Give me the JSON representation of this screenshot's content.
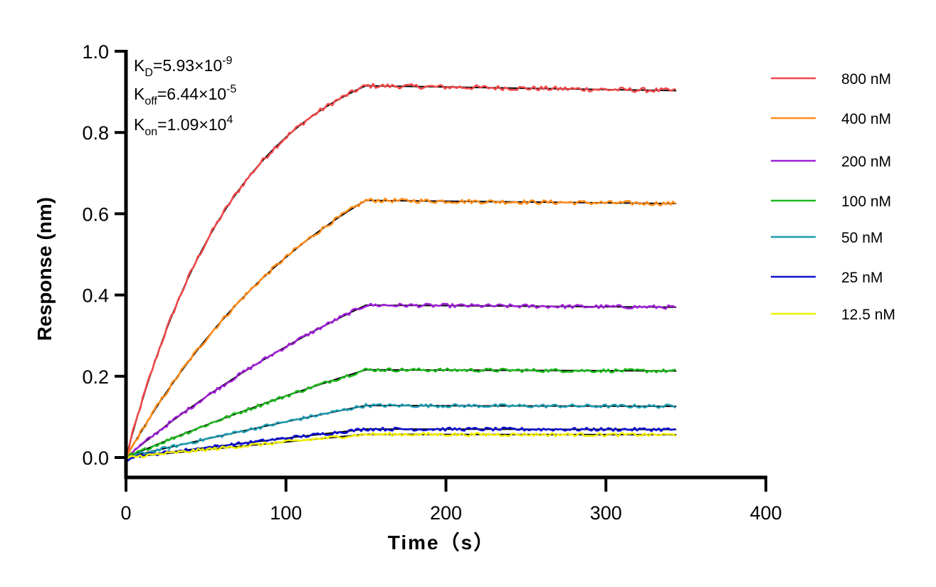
{
  "chart_data": {
    "type": "line",
    "xlabel": "Time（s）",
    "ylabel": "Response (nm)",
    "xlim": [
      0,
      400
    ],
    "ylim": [
      -0.05,
      1.0
    ],
    "x_ticks": [
      0,
      100,
      200,
      300,
      400
    ],
    "y_ticks": [
      0.0,
      0.2,
      0.4,
      0.6,
      0.8,
      1.0
    ],
    "x_tick_labels": [
      "0",
      "100",
      "200",
      "300",
      "400"
    ],
    "y_tick_labels": [
      "0.0",
      "0.2",
      "0.4",
      "0.6",
      "0.8",
      "1.0"
    ],
    "grid": false,
    "legend_position": "right",
    "association_end": 150,
    "x_end": 344,
    "fit_color": "#000000",
    "annotations": [
      {
        "main": "K",
        "sub": "D",
        "text": "=5.93×10",
        "sup": "-9"
      },
      {
        "main": "K",
        "sub": "off",
        "text": "=6.44×10",
        "sup": "-5"
      },
      {
        "main": "K",
        "sub": "on",
        "text": "=1.09×10",
        "sup": "4"
      }
    ],
    "series": [
      {
        "name": "800 nM",
        "color": "#f0484a",
        "plateau": 0.915,
        "end_value": 0.903,
        "curvature": 0.0143
      },
      {
        "name": "400 nM",
        "color": "#ff8c1a",
        "plateau": 0.633,
        "end_value": 0.625,
        "curvature": 0.0073
      },
      {
        "name": "200 nM",
        "color": "#a020d8",
        "plateau": 0.375,
        "end_value": 0.37,
        "curvature": 0.0038
      },
      {
        "name": "100 nM",
        "color": "#1fb81f",
        "plateau": 0.216,
        "end_value": 0.213,
        "curvature": 0.0021
      },
      {
        "name": "50 nM",
        "color": "#1f9bb0",
        "plateau": 0.128,
        "end_value": 0.126,
        "curvature": 0.0012
      },
      {
        "name": "25 nM",
        "color": "#1010d0",
        "plateau": 0.07,
        "end_value": 0.069,
        "curvature": 0.0007
      },
      {
        "name": "12.5 nM",
        "color": "#f0f000",
        "plateau": 0.057,
        "end_value": 0.056,
        "curvature": 0.0004
      }
    ]
  }
}
